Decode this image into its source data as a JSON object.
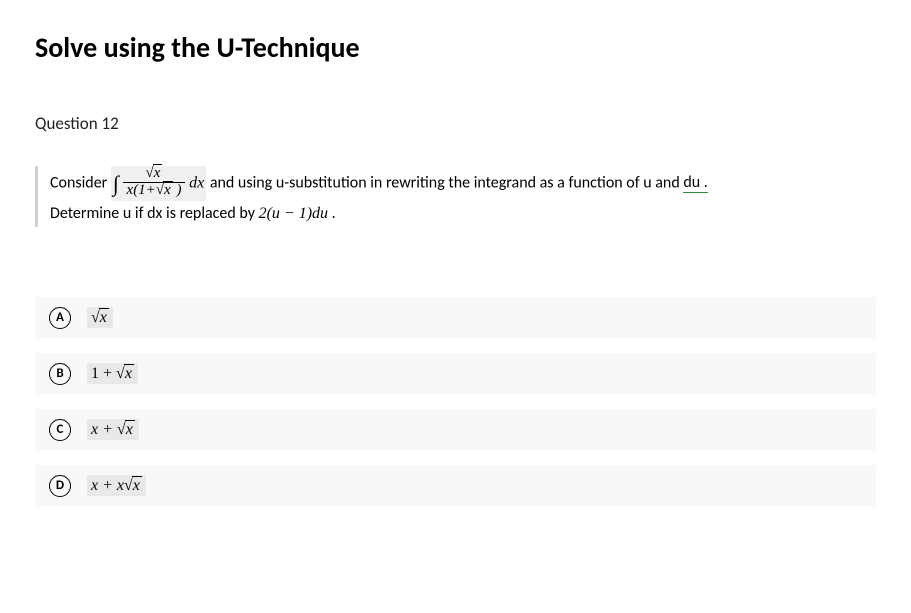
{
  "page_title": "Solve using the U-Technique",
  "question_label": "Question 12",
  "question": {
    "line1_before": "Consider  ",
    "integral_sym": "∫",
    "frac_num_sqrt_arg": "x",
    "frac_den_before": "x(1+",
    "frac_den_sqrt_arg": "x",
    "frac_den_after": " )",
    "dx_text": "dx",
    "line1_after": "  and using u-substitution in rewriting the integrand as a function of u and ",
    "du_text": "du .",
    "line2_before": "Determine u if dx is replaced by ",
    "replace_expr": "2(u − 1)du",
    "line2_after": "."
  },
  "options": [
    {
      "letter": "A",
      "prefix": "",
      "radicand": "x",
      "suffix": ""
    },
    {
      "letter": "B",
      "prefix": "1 + ",
      "radicand": "x",
      "suffix": ""
    },
    {
      "letter": "C",
      "prefix": "x + ",
      "radicand": "x",
      "suffix": ""
    },
    {
      "letter": "D",
      "prefix": "x + x",
      "radicand": "x",
      "suffix": ""
    }
  ]
}
